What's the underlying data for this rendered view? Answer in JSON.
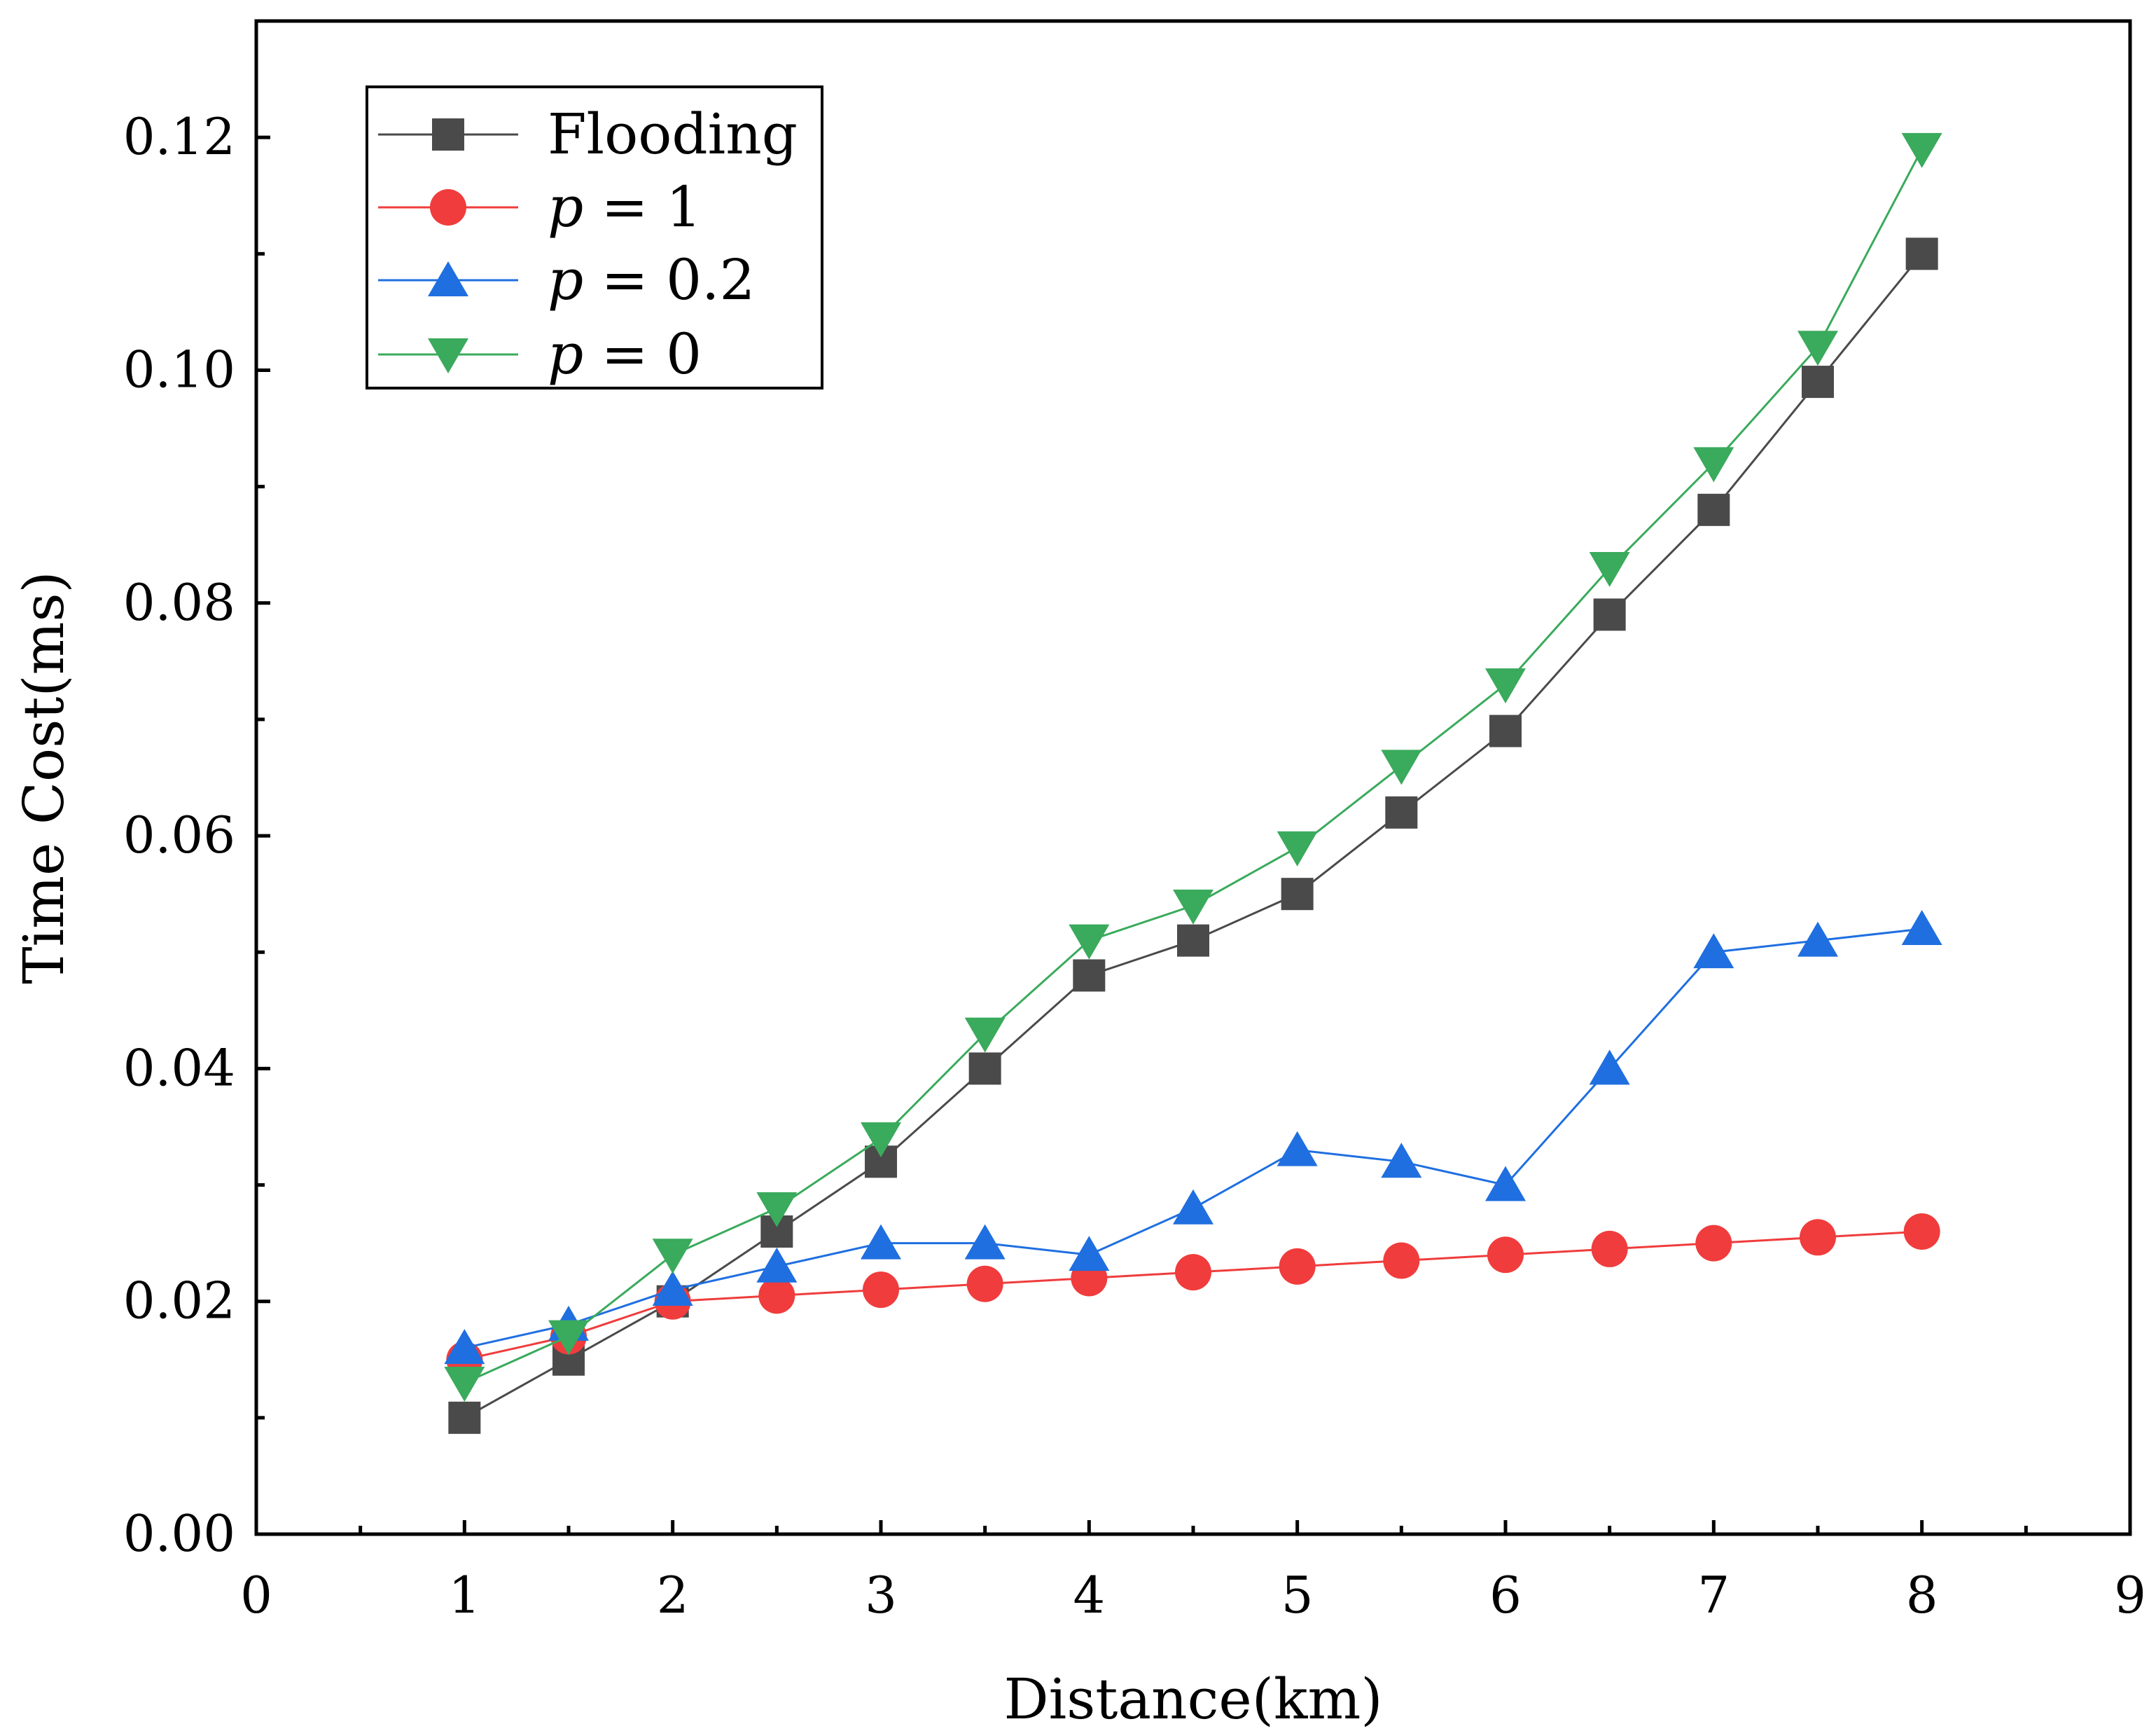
{
  "chart_data": {
    "type": "line",
    "title": "",
    "xlabel": "Distance(km)",
    "ylabel": "Time Cost(ms)",
    "xlim": [
      0,
      9
    ],
    "ylim": [
      0,
      0.13
    ],
    "x_ticks": [
      "0",
      "1",
      "2",
      "3",
      "4",
      "5",
      "6",
      "7",
      "8",
      "9"
    ],
    "y_ticks": [
      "0.00",
      "0.02",
      "0.04",
      "0.06",
      "0.08",
      "0.10",
      "0.12"
    ],
    "grid": false,
    "legend_position": "top-left",
    "x": [
      1,
      1.5,
      2,
      2.5,
      3,
      3.5,
      4,
      4.5,
      5,
      5.5,
      6,
      6.5,
      7,
      7.5,
      8
    ],
    "series": [
      {
        "name": "Flooding",
        "label_var": "",
        "label_rest": "Flooding",
        "marker": "square",
        "color": "#4a4a4a",
        "values": [
          0.01,
          0.015,
          0.02,
          0.026,
          0.032,
          0.04,
          0.048,
          0.051,
          0.055,
          0.062,
          0.069,
          0.079,
          0.088,
          0.099,
          0.11
        ]
      },
      {
        "name": "p = 1",
        "label_var": "p",
        "label_rest": " = 1",
        "marker": "circle",
        "color": "#f03c3c",
        "values": [
          0.015,
          0.017,
          0.02,
          0.0205,
          0.021,
          0.0215,
          0.022,
          0.0225,
          0.023,
          0.0235,
          0.024,
          0.0245,
          0.025,
          0.0255,
          0.026
        ]
      },
      {
        "name": "p = 0.2",
        "label_var": "p",
        "label_rest": " = 0.2",
        "marker": "triangle-up",
        "color": "#1f6fe0",
        "values": [
          0.016,
          0.018,
          0.021,
          0.023,
          0.025,
          0.025,
          0.024,
          0.028,
          0.033,
          0.032,
          0.03,
          0.04,
          0.05,
          0.051,
          0.052
        ]
      },
      {
        "name": "p = 0",
        "label_var": "p",
        "label_rest": "  = 0",
        "marker": "triangle-down",
        "color": "#3aaa5c",
        "values": [
          0.013,
          0.017,
          0.024,
          0.028,
          0.034,
          0.043,
          0.051,
          0.054,
          0.059,
          0.066,
          0.073,
          0.083,
          0.092,
          0.102,
          0.119
        ]
      }
    ]
  }
}
